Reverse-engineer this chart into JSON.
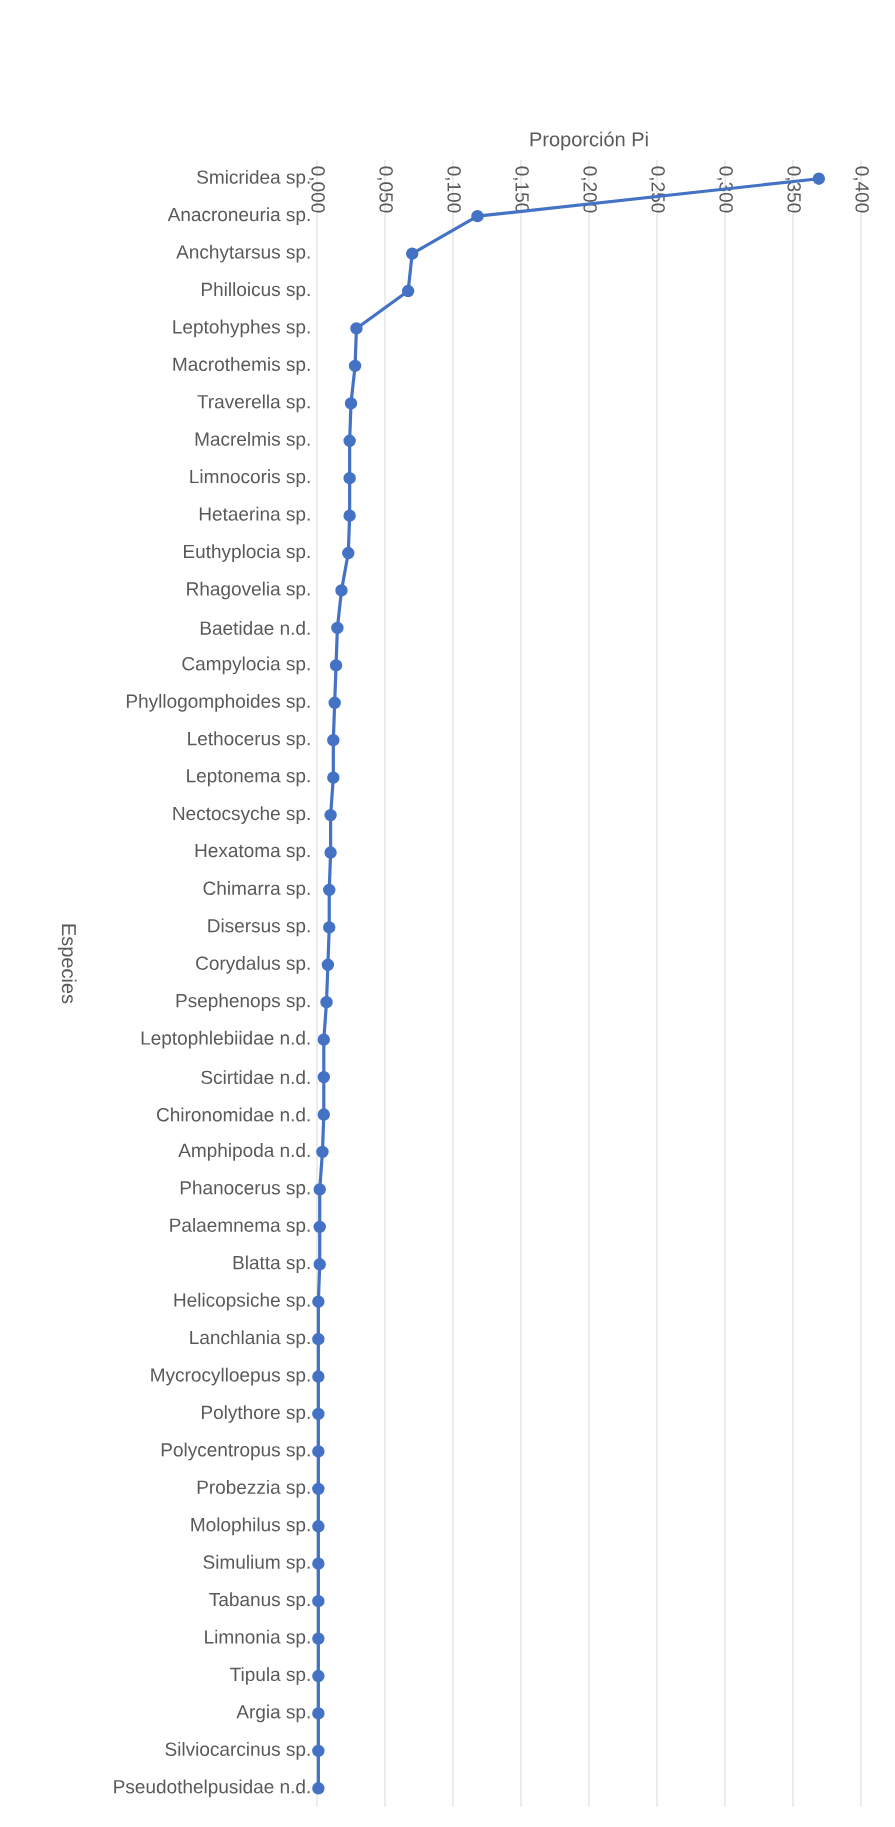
{
  "chart_data": {
    "type": "line",
    "orientation": "horizontal",
    "xlabel": "Proporción Pi",
    "ylabel": "Especies",
    "categories": [
      "Smicridea sp.",
      "Anacroneuria sp.",
      "Anchytarsus sp.",
      "Philloicus sp.",
      "Leptohyphes sp.",
      "Macrothemis sp.",
      "Traverella sp.",
      "Macrelmis sp.",
      "Limnocoris sp.",
      "Hetaerina sp.",
      "Euthyplocia sp.",
      "Rhagovelia sp.",
      "Baetidae n.d.",
      "Campylocia sp.",
      "Phyllogomphoides sp.",
      "Lethocerus sp.",
      "Leptonema sp.",
      "Nectocsyche sp.",
      "Hexatoma sp.",
      "Chimarra sp.",
      "Disersus sp.",
      "Corydalus sp.",
      "Psephenops sp.",
      "Leptophlebiidae n.d.",
      "Scirtidae n.d.",
      "Chironomidae n.d.",
      "Amphipoda n.d.",
      "Phanocerus sp.",
      "Palaemnema sp.",
      "Blatta sp.",
      "Helicopsiche sp.",
      "Lanchlania sp.",
      "Mycrocylloepus sp.",
      "Polythore sp.",
      "Polycentropus sp.",
      "Probezzia sp.",
      "Molophilus sp.",
      "Simulium sp.",
      "Tabanus sp.",
      "Limnonia sp.",
      "Tipula sp.",
      "Argia sp.",
      "Silviocarcinus sp.",
      "Pseudothelpusidae n.d."
    ],
    "series": [
      {
        "color": "#4472c4",
        "values": [
          0.369,
          0.118,
          0.07,
          0.067,
          0.029,
          0.028,
          0.025,
          0.024,
          0.024,
          0.024,
          0.023,
          0.018,
          0.015,
          0.014,
          0.013,
          0.012,
          0.012,
          0.01,
          0.01,
          0.009,
          0.009,
          0.008,
          0.007,
          0.005,
          0.005,
          0.005,
          0.004,
          0.002,
          0.002,
          0.002,
          0.001,
          0.001,
          0.001,
          0.001,
          0.001,
          0.001,
          0.001,
          0.001,
          0.001,
          0.001,
          0.001,
          0.001,
          0.001,
          0.001
        ]
      }
    ],
    "xlim": [
      0,
      0.4
    ],
    "xticks": [
      {
        "value": 0,
        "label": "0,000"
      },
      {
        "value": 0.05,
        "label": "0,050"
      },
      {
        "value": 0.1,
        "label": "0,100"
      },
      {
        "value": 0.15,
        "label": "0,150"
      },
      {
        "value": 0.2,
        "label": "0,200"
      },
      {
        "value": 0.25,
        "label": "0,250"
      },
      {
        "value": 0.3,
        "label": "0,300"
      },
      {
        "value": 0.35,
        "label": "0,350"
      },
      {
        "value": 0.4,
        "label": "0,400"
      }
    ],
    "grid": "x",
    "marker": "circle",
    "line_style": "solid"
  }
}
